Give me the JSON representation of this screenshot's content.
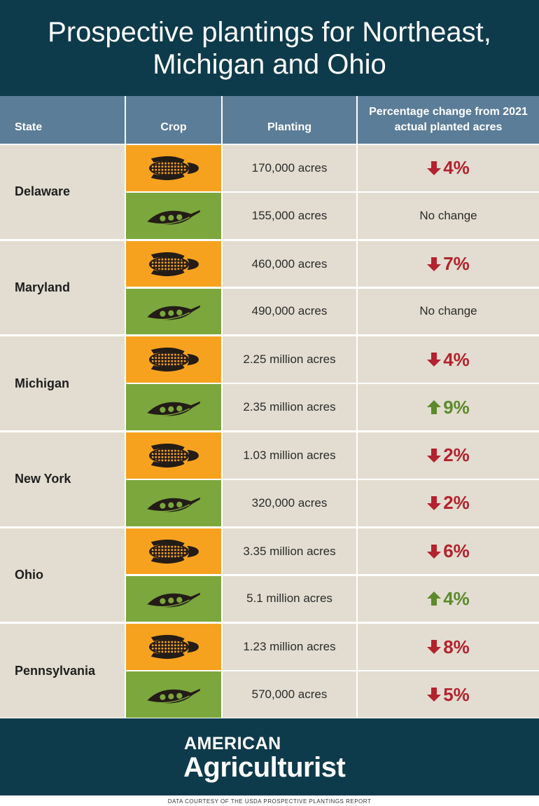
{
  "header": {
    "title": "Prospective plantings for Northeast, Michigan and Ohio"
  },
  "table": {
    "columns": [
      "State",
      "Crop",
      "Planting",
      "Percentage change from 2021 actual planted acres"
    ],
    "states": [
      {
        "state": "Delaware",
        "crops": [
          {
            "planting": "170,000 acres",
            "change": "4%",
            "trend": "down"
          },
          {
            "planting": "155,000 acres",
            "change": "No change"
          }
        ]
      },
      {
        "state": "Maryland",
        "crops": [
          {
            "planting": "460,000 acres",
            "change": "7%",
            "trend": "down"
          },
          {
            "planting": "490,000 acres",
            "change": "No change"
          }
        ]
      },
      {
        "state": "Michigan",
        "crops": [
          {
            "planting": "2.25 million acres",
            "change": "4%",
            "trend": "down"
          },
          {
            "planting": "2.35 million acres",
            "change": "9%",
            "trend": "up"
          }
        ]
      },
      {
        "state": "New York",
        "crops": [
          {
            "planting": "1.03 million acres",
            "change": "2%",
            "trend": "down"
          },
          {
            "planting": "320,000 acres",
            "change": "2%",
            "trend": "down"
          }
        ]
      },
      {
        "state": "Ohio",
        "crops": [
          {
            "planting": "3.35 million acres",
            "change": "6%",
            "trend": "down"
          },
          {
            "planting": "5.1 million acres",
            "change": "4%",
            "trend": "up"
          }
        ]
      },
      {
        "state": "Pennsylvania",
        "crops": [
          {
            "planting": "1.23 million acres",
            "change": "8%",
            "trend": "down"
          },
          {
            "planting": "570,000 acres",
            "change": "5%",
            "trend": "down"
          }
        ]
      }
    ]
  },
  "logo": {
    "line1": "AMERICAN",
    "line2": "Agriculturist"
  },
  "footer": {
    "source": "DATA COURTESY OF THE USDA PROSPECTIVE PLANTINGS REPORT"
  }
}
